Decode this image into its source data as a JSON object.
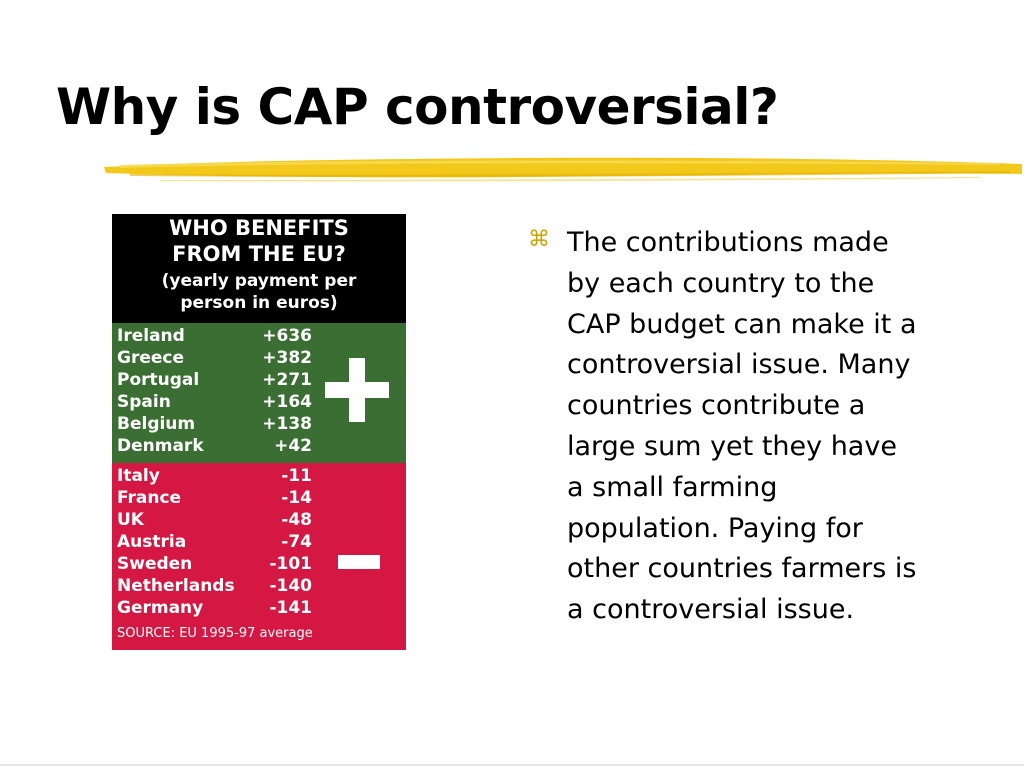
{
  "slide": {
    "title": "Why is CAP controversial?",
    "underline_color": "#f2c81a"
  },
  "infographic": {
    "header": {
      "line1": "WHO BENEFITS",
      "line2": "FROM THE EU?",
      "line3": "(yearly payment per",
      "line4": "person in euros)"
    },
    "colors": {
      "header_bg": "#000000",
      "gainers_bg": "#3a6e32",
      "losers_bg": "#d41843",
      "text": "#ffffff"
    },
    "gainers": [
      {
        "country": "Ireland",
        "value": "+636"
      },
      {
        "country": "Greece",
        "value": "+382"
      },
      {
        "country": "Portugal",
        "value": "+271"
      },
      {
        "country": "Spain",
        "value": "+164"
      },
      {
        "country": "Belgium",
        "value": "+138"
      },
      {
        "country": "Denmark",
        "value": "+42"
      }
    ],
    "losers": [
      {
        "country": "Italy",
        "value": "-11"
      },
      {
        "country": "France",
        "value": "-14"
      },
      {
        "country": "UK",
        "value": "-48"
      },
      {
        "country": "Austria",
        "value": "-74"
      },
      {
        "country": "Sweden",
        "value": "-101"
      },
      {
        "country": "Netherlands",
        "value": "-140"
      },
      {
        "country": "Germany",
        "value": "-141"
      }
    ],
    "plus_icon": "plus-icon",
    "minus_icon": "minus-icon",
    "source": "SOURCE: EU 1995-97 average"
  },
  "bullet": {
    "icon": "command-key-bullet-icon",
    "icon_glyph": "⌘",
    "lines": [
      "The contributions made",
      "by each country to the",
      "CAP budget can make it a",
      "controversial issue. Many",
      "countries contribute a",
      "large sum yet they have",
      "a small farming",
      "population. Paying for",
      "other countries farmers is",
      "a controversial issue."
    ]
  }
}
